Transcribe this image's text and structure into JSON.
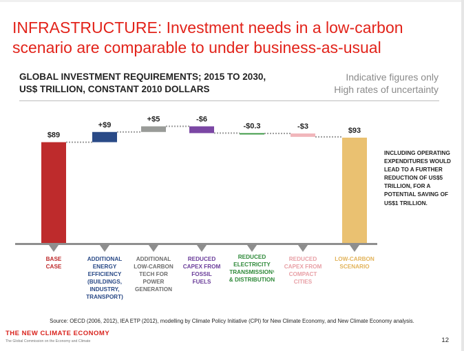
{
  "slide": {
    "title_lines": [
      "INFRASTRUCTURE: Investment needs in a low-carbon",
      "scenario are comparable to under business-as-usual"
    ],
    "page_number": "12"
  },
  "chart_data": {
    "type": "bar",
    "subtype": "waterfall",
    "title_lines": [
      "GLOBAL INVESTMENT REQUIREMENTS; 2015 TO 2030,",
      "US$ TRILLION, CONSTANT 2010 DOLLARS"
    ],
    "note_lines": [
      "Indicative figures only",
      "High rates of uncertainty"
    ],
    "categories": [
      [
        "BASE",
        "CASE"
      ],
      [
        "ADDITIONAL",
        "ENERGY",
        "EFFICIENCY",
        "(BUILDINGS,",
        "INDUSTRY,",
        "TRANSPORT)"
      ],
      [
        "ADDITIONAL",
        "LOW-CARBON",
        "TECH FOR",
        "POWER",
        "GENERATION"
      ],
      [
        "REDUCED",
        "CAPEX FROM",
        "FOSSIL",
        "FUELS"
      ],
      [
        "REDUCED",
        "ELECTRICITY",
        "TRANSMISSION¹",
        "& DISTRIBUTION"
      ],
      [
        "REDUCED",
        "CAPEX FROM",
        "COMPACT",
        "CITIES"
      ],
      [
        "LOW-CARBON",
        "SCENARIO"
      ]
    ],
    "kinds": [
      "total",
      "delta",
      "delta",
      "delta",
      "delta",
      "delta",
      "total"
    ],
    "values": [
      89,
      9,
      5,
      -6,
      -0.3,
      -3,
      93
    ],
    "value_labels": [
      "$89",
      "+$9",
      "+$5",
      "-$6",
      "-$0.3",
      "-$3",
      "$93"
    ],
    "colors": [
      "#be2b2c",
      "#2a4a87",
      "#999b98",
      "#7b47a4",
      "#3f9a47",
      "#f1b6bb",
      "#eac171"
    ],
    "label_colors": [
      "#be2b2c",
      "#2a4a87",
      "#6d6d6d",
      "#6a3d9a",
      "#2f8a3a",
      "#e8a0a6",
      "#e2b35a"
    ],
    "ylim": [
      0,
      93
    ],
    "side_note": "INCLUDING OPERATING EXPENDITURES WOULD LEAD TO A FURTHER REDUCTION OF US$5 TRILLION, FOR A POTENTIAL SAVING OF US$1 TRILLION."
  },
  "footer": {
    "source": "Source: OECD (2006, 2012), IEA ETP (2012), modelling by Climate Policy Initiative (CPI) for New Climate Economy, and New Climate Economy analysis.",
    "brand": "THE NEW CLIMATE ECONOMY",
    "brand_sub": "The Global Commission on the Economy and Climate"
  }
}
